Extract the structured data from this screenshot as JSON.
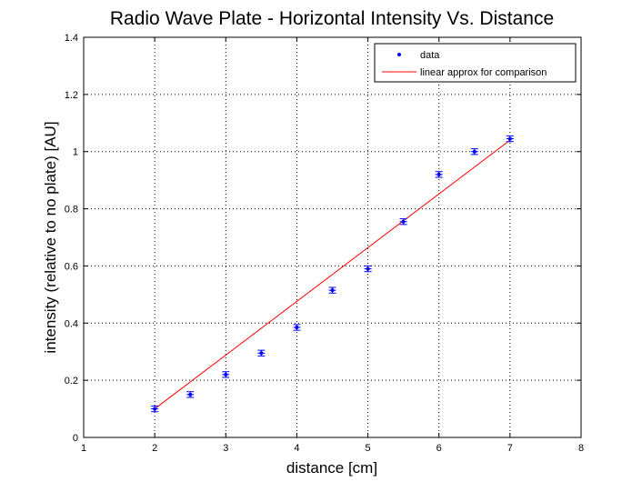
{
  "chart_data": {
    "type": "scatter",
    "title": "Radio Wave Plate - Horizontal Intensity Vs. Distance",
    "xlabel": "distance [cm]",
    "ylabel": "intensity (relative to no plate) [AU]",
    "xlim": [
      1,
      8
    ],
    "ylim": [
      0,
      1.4
    ],
    "xticks": [
      "1",
      "2",
      "3",
      "4",
      "5",
      "6",
      "7",
      "8"
    ],
    "yticks": [
      "0",
      "0.2",
      "0.4",
      "0.6",
      "0.8",
      "1",
      "1.2",
      "1.4"
    ],
    "grid": true,
    "legend_position": "top-right",
    "series": [
      {
        "name": "data",
        "color": "#0000ff",
        "marker": "point with error bars",
        "x": [
          2,
          2.5,
          3,
          3.5,
          4,
          4.5,
          5,
          5.5,
          6,
          6.5,
          7
        ],
        "y": [
          0.1,
          0.15,
          0.22,
          0.295,
          0.385,
          0.515,
          0.59,
          0.755,
          0.92,
          1.0,
          1.045
        ],
        "error": [
          0.01,
          0.01,
          0.01,
          0.01,
          0.01,
          0.01,
          0.01,
          0.01,
          0.01,
          0.01,
          0.01
        ]
      },
      {
        "name": "linear approx for comparison",
        "color": "#ff0000",
        "marker": "line",
        "x": [
          2,
          7
        ],
        "y": [
          0.1,
          1.04
        ]
      }
    ]
  }
}
